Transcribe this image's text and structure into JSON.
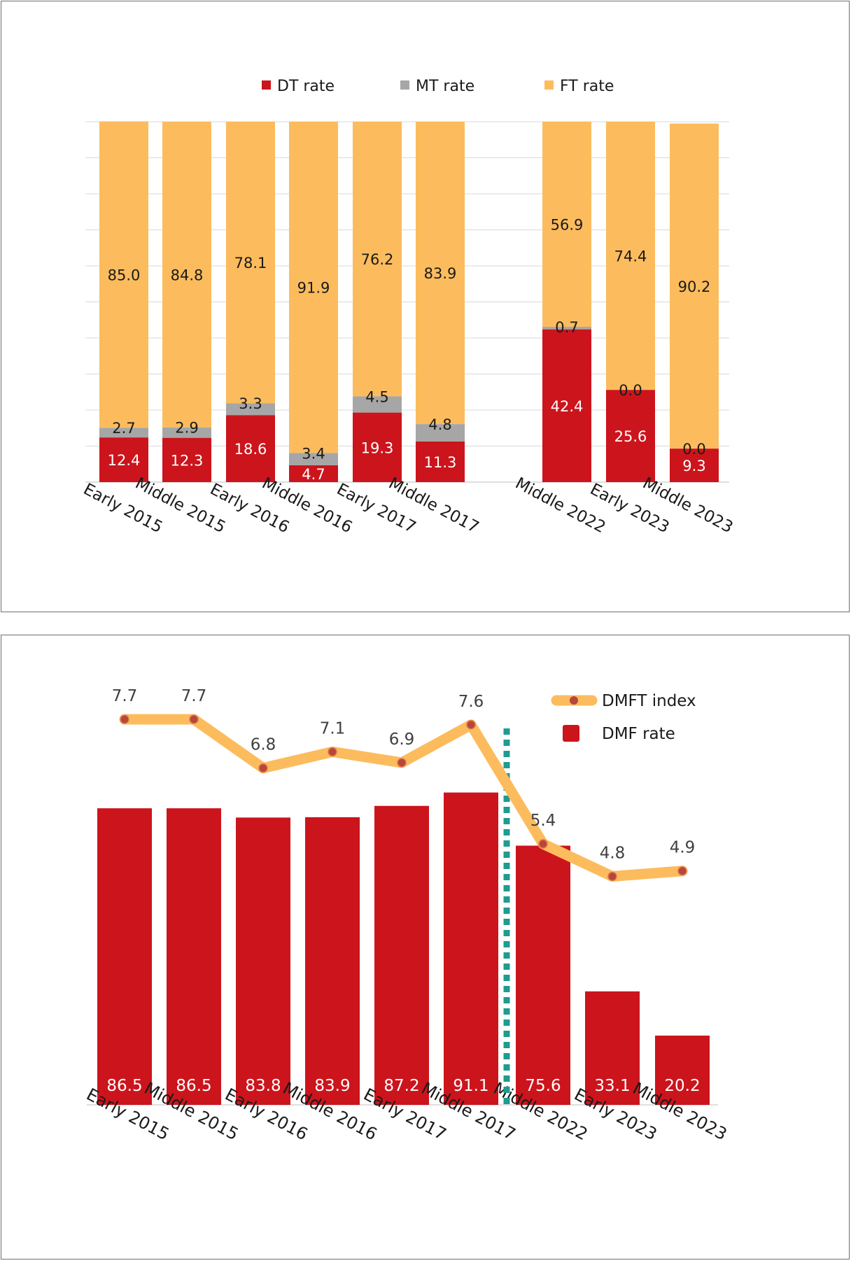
{
  "colors": {
    "dt": "#cc141c",
    "mt": "#a6a6a6",
    "ft": "#fcbc5d",
    "dmf": "#cc141c",
    "dmft_line": "#fcbc5d",
    "dmft_marker": "#b7473a",
    "divider": "#1f9b8f",
    "grid": "#d9d9d9",
    "axis": "#bfbfbf",
    "label_dark": "#1a1a1a",
    "label_light": "#ffffff",
    "label_grey": "#3f3f3f"
  },
  "chart_data": [
    {
      "type": "bar",
      "stacked": true,
      "title": "",
      "xlabel": "",
      "ylabel": "",
      "ylim": [
        0,
        100
      ],
      "grid": true,
      "legend_position": "top",
      "categories": [
        "Early 2015",
        "Middle 2015",
        "Early 2016",
        "Middle 2016",
        "Early 2017",
        "Middle 2017",
        "Middle 2022",
        "Early 2023",
        "Middle 2023"
      ],
      "series": [
        {
          "name": "DT rate",
          "color_key": "dt",
          "values": [
            12.4,
            12.3,
            18.6,
            4.7,
            19.3,
            11.3,
            42.4,
            25.6,
            9.3
          ]
        },
        {
          "name": "MT rate",
          "color_key": "mt",
          "values": [
            2.7,
            2.9,
            3.3,
            3.4,
            4.5,
            4.8,
            0.7,
            0.0,
            0.0
          ]
        },
        {
          "name": "FT rate",
          "color_key": "ft",
          "values": [
            85.0,
            84.8,
            78.1,
            91.9,
            76.2,
            83.9,
            56.9,
            74.4,
            90.2
          ]
        }
      ],
      "data_labels": {
        "DT rate": [
          "12.4",
          "12.3",
          "18.6",
          "4.7",
          "19.3",
          "11.3",
          "42.4",
          "25.6",
          "9.3"
        ],
        "MT rate": [
          "2.7",
          "2.9",
          "3.3",
          "3.4",
          "4.5",
          "4.8",
          "0.7",
          "0.0",
          "0.0"
        ],
        "FT rate": [
          "85.0",
          "84.8",
          "78.1",
          "91.9",
          "76.2",
          "83.9",
          "56.9",
          "74.4",
          "90.2"
        ]
      }
    },
    {
      "type": "bar",
      "title": "",
      "xlabel": "",
      "ylabel": "",
      "grid": false,
      "legend_position": "top-right",
      "categories": [
        "Early 2015",
        "Middle 2015",
        "Early 2016",
        "Middle 2016",
        "Early 2017",
        "Middle 2017",
        "Middle 2022",
        "Early 2023",
        "Middle 2023"
      ],
      "series": [
        {
          "name": "DMF rate",
          "type": "bar",
          "color_key": "dmf",
          "values": [
            86.5,
            86.5,
            83.8,
            83.9,
            87.2,
            91.1,
            75.6,
            33.1,
            20.2
          ],
          "labels": [
            "86.5",
            "86.5",
            "83.8",
            "83.9",
            "87.2",
            "91.1",
            "75.6",
            "33.1",
            "20.2"
          ]
        },
        {
          "name": "DMFT index",
          "type": "line",
          "color_key": "dmft_line",
          "values": [
            7.7,
            7.7,
            6.8,
            7.1,
            6.9,
            7.6,
            5.4,
            4.8,
            4.9
          ],
          "labels": [
            "7.7",
            "7.7",
            "6.8",
            "7.1",
            "6.9",
            "7.6",
            "5.4",
            "4.8",
            "4.9"
          ]
        }
      ],
      "divider_after_category": "Middle 2017"
    }
  ]
}
